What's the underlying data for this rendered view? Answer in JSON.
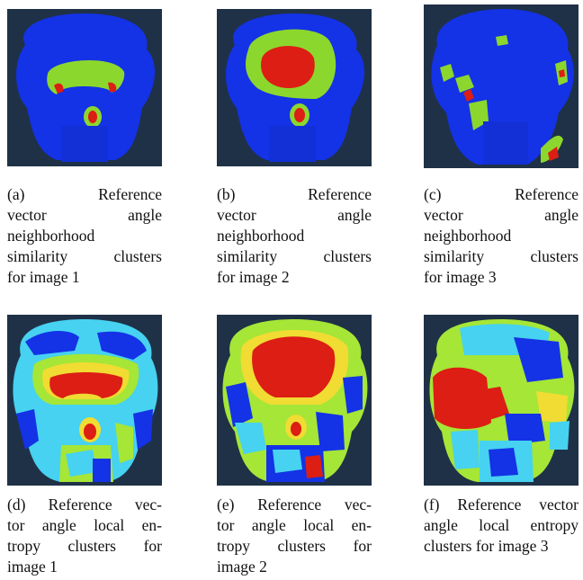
{
  "figure": {
    "panels": [
      {
        "id": "a",
        "caption_lines": [
          "(a) Reference",
          "vector angle",
          "neighborhood",
          "similarity clusters",
          "for image 1"
        ],
        "colors": [
          "#1432e6",
          "#8cd72d",
          "#dc1e14"
        ]
      },
      {
        "id": "b",
        "caption_lines": [
          "(b) Reference",
          "vector angle",
          "neighborhood",
          "similarity clusters",
          "for image 2"
        ],
        "colors": [
          "#1432e6",
          "#8cd72d",
          "#dc1e14"
        ]
      },
      {
        "id": "c",
        "caption_lines": [
          "(c) Reference",
          "vector angle",
          "neighborhood",
          "similarity clusters",
          "for image 3"
        ],
        "colors": [
          "#1432e6",
          "#8cd72d",
          "#dc1e14"
        ]
      },
      {
        "id": "d",
        "caption_lines": [
          "(d) Reference vec-",
          "tor angle local en-",
          "tropy clusters for",
          "image 1"
        ],
        "colors": [
          "#1432e6",
          "#46d2f0",
          "#a5e637",
          "#f0dc32",
          "#dc1e14"
        ]
      },
      {
        "id": "e",
        "caption_lines": [
          "(e) Reference vec-",
          "tor angle local en-",
          "tropy clusters for",
          "image 2"
        ],
        "colors": [
          "#1432e6",
          "#46d2f0",
          "#a5e637",
          "#f0dc32",
          "#dc1e14"
        ]
      },
      {
        "id": "f",
        "caption_lines": [
          "(f) Reference vector",
          "angle local entropy",
          "clusters for image 3"
        ],
        "colors": [
          "#1432e6",
          "#46d2f0",
          "#a5e637",
          "#f0dc32",
          "#dc1e14"
        ]
      }
    ],
    "background_color": "#1f3147"
  }
}
